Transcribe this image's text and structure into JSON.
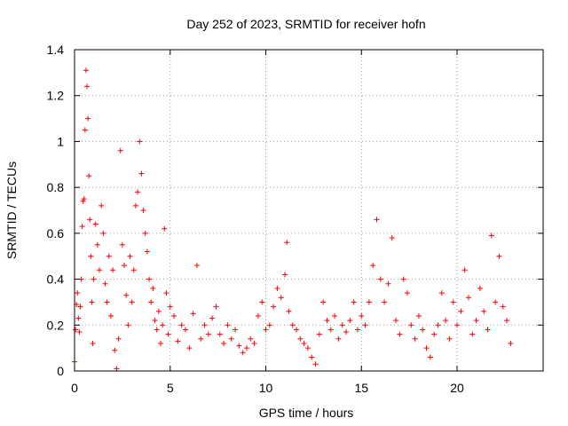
{
  "chart_data": {
    "type": "scatter",
    "title": "Day 252 of 2023, SRMTID for receiver hofn",
    "xlabel": "GPS time / hours",
    "ylabel": "SRMTID / TECUs",
    "xlim": [
      0,
      24.5
    ],
    "ylim": [
      0,
      1.4
    ],
    "xticks": [
      0,
      5,
      10,
      15,
      20
    ],
    "xtick_labels": [
      "0",
      "5",
      "10",
      "15",
      "20"
    ],
    "yticks": [
      0,
      0.2,
      0.4,
      0.6,
      0.8,
      1.0,
      1.2,
      1.4
    ],
    "ytick_labels": [
      "0",
      "0.2",
      "0.4",
      "0.6",
      "0.8",
      "1",
      "1.2",
      "1.4"
    ],
    "grid": true,
    "marker": "+",
    "color": "#ff0000",
    "series": [
      {
        "name": "SRMTID",
        "points": [
          [
            0.0,
            0.04
          ],
          [
            0.05,
            0.18
          ],
          [
            0.1,
            0.29
          ],
          [
            0.15,
            0.34
          ],
          [
            0.2,
            0.23
          ],
          [
            0.25,
            0.17
          ],
          [
            0.3,
            0.28
          ],
          [
            0.35,
            0.4
          ],
          [
            0.4,
            0.63
          ],
          [
            0.45,
            0.74
          ],
          [
            0.5,
            0.75
          ],
          [
            0.55,
            1.05
          ],
          [
            0.6,
            1.31
          ],
          [
            0.65,
            1.24
          ],
          [
            0.7,
            1.1
          ],
          [
            0.75,
            0.85
          ],
          [
            0.8,
            0.66
          ],
          [
            0.85,
            0.5
          ],
          [
            0.9,
            0.3
          ],
          [
            0.95,
            0.12
          ],
          [
            1.0,
            0.4
          ],
          [
            1.1,
            0.64
          ],
          [
            1.2,
            0.55
          ],
          [
            1.3,
            0.44
          ],
          [
            1.4,
            0.72
          ],
          [
            1.5,
            0.6
          ],
          [
            1.6,
            0.38
          ],
          [
            1.7,
            0.3
          ],
          [
            1.8,
            0.5
          ],
          [
            1.9,
            0.24
          ],
          [
            2.0,
            0.44
          ],
          [
            2.1,
            0.09
          ],
          [
            2.2,
            0.01
          ],
          [
            2.3,
            0.14
          ],
          [
            2.4,
            0.96
          ],
          [
            2.5,
            0.55
          ],
          [
            2.6,
            0.46
          ],
          [
            2.7,
            0.33
          ],
          [
            2.8,
            0.2
          ],
          [
            2.9,
            0.5
          ],
          [
            3.0,
            0.3
          ],
          [
            3.1,
            0.44
          ],
          [
            3.2,
            0.72
          ],
          [
            3.3,
            0.78
          ],
          [
            3.4,
            1.0
          ],
          [
            3.5,
            0.86
          ],
          [
            3.6,
            0.7
          ],
          [
            3.7,
            0.6
          ],
          [
            3.8,
            0.52
          ],
          [
            3.9,
            0.4
          ],
          [
            4.0,
            0.3
          ],
          [
            4.1,
            0.36
          ],
          [
            4.2,
            0.22
          ],
          [
            4.3,
            0.18
          ],
          [
            4.4,
            0.26
          ],
          [
            4.5,
            0.12
          ],
          [
            4.6,
            0.2
          ],
          [
            4.7,
            0.62
          ],
          [
            4.8,
            0.34
          ],
          [
            4.9,
            0.16
          ],
          [
            5.0,
            0.28
          ],
          [
            5.2,
            0.24
          ],
          [
            5.4,
            0.13
          ],
          [
            5.6,
            0.2
          ],
          [
            5.8,
            0.18
          ],
          [
            6.0,
            0.1
          ],
          [
            6.2,
            0.25
          ],
          [
            6.4,
            0.46
          ],
          [
            6.6,
            0.14
          ],
          [
            6.8,
            0.2
          ],
          [
            7.0,
            0.16
          ],
          [
            7.2,
            0.23
          ],
          [
            7.4,
            0.28
          ],
          [
            7.6,
            0.16
          ],
          [
            7.8,
            0.12
          ],
          [
            8.0,
            0.2
          ],
          [
            8.2,
            0.14
          ],
          [
            8.4,
            0.18
          ],
          [
            8.6,
            0.11
          ],
          [
            8.8,
            0.08
          ],
          [
            9.0,
            0.1
          ],
          [
            9.2,
            0.14
          ],
          [
            9.4,
            0.12
          ],
          [
            9.6,
            0.24
          ],
          [
            9.8,
            0.3
          ],
          [
            10.0,
            0.18
          ],
          [
            10.2,
            0.2
          ],
          [
            10.4,
            0.28
          ],
          [
            10.6,
            0.36
          ],
          [
            10.8,
            0.32
          ],
          [
            11.0,
            0.42
          ],
          [
            11.1,
            0.56
          ],
          [
            11.2,
            0.26
          ],
          [
            11.4,
            0.2
          ],
          [
            11.6,
            0.18
          ],
          [
            11.8,
            0.14
          ],
          [
            12.0,
            0.12
          ],
          [
            12.2,
            0.1
          ],
          [
            12.4,
            0.06
          ],
          [
            12.6,
            0.03
          ],
          [
            12.8,
            0.16
          ],
          [
            13.0,
            0.3
          ],
          [
            13.2,
            0.22
          ],
          [
            13.4,
            0.18
          ],
          [
            13.6,
            0.24
          ],
          [
            13.8,
            0.14
          ],
          [
            14.0,
            0.2
          ],
          [
            14.2,
            0.17
          ],
          [
            14.4,
            0.22
          ],
          [
            14.6,
            0.3
          ],
          [
            14.8,
            0.18
          ],
          [
            15.0,
            0.24
          ],
          [
            15.2,
            0.2
          ],
          [
            15.4,
            0.3
          ],
          [
            15.6,
            0.46
          ],
          [
            15.8,
            0.66
          ],
          [
            16.0,
            0.4
          ],
          [
            16.2,
            0.3
          ],
          [
            16.4,
            0.38
          ],
          [
            16.6,
            0.58
          ],
          [
            16.8,
            0.22
          ],
          [
            17.0,
            0.16
          ],
          [
            17.2,
            0.4
          ],
          [
            17.4,
            0.34
          ],
          [
            17.6,
            0.2
          ],
          [
            17.8,
            0.14
          ],
          [
            18.0,
            0.24
          ],
          [
            18.2,
            0.18
          ],
          [
            18.4,
            0.1
          ],
          [
            18.6,
            0.06
          ],
          [
            18.8,
            0.16
          ],
          [
            19.0,
            0.2
          ],
          [
            19.2,
            0.34
          ],
          [
            19.4,
            0.22
          ],
          [
            19.6,
            0.14
          ],
          [
            19.8,
            0.3
          ],
          [
            20.0,
            0.2
          ],
          [
            20.2,
            0.26
          ],
          [
            20.4,
            0.44
          ],
          [
            20.6,
            0.32
          ],
          [
            20.8,
            0.16
          ],
          [
            21.0,
            0.22
          ],
          [
            21.2,
            0.36
          ],
          [
            21.4,
            0.26
          ],
          [
            21.6,
            0.18
          ],
          [
            21.8,
            0.59
          ],
          [
            22.0,
            0.3
          ],
          [
            22.2,
            0.5
          ],
          [
            22.4,
            0.28
          ],
          [
            22.6,
            0.22
          ],
          [
            22.8,
            0.12
          ]
        ]
      }
    ]
  }
}
